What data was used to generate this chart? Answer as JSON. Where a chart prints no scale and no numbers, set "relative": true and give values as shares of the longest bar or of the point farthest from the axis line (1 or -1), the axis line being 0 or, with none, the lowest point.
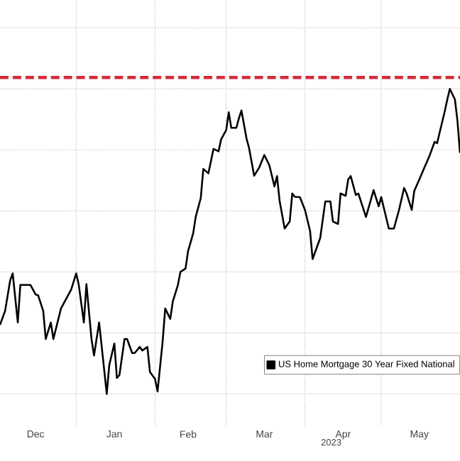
{
  "chart_data": {
    "type": "line",
    "relative": true,
    "xlabel": "2023",
    "x": [
      "2022-12-02",
      "2022-12-04",
      "2022-12-06",
      "2022-12-07",
      "2022-12-09",
      "2022-12-10",
      "2022-12-14",
      "2022-12-16",
      "2022-12-17",
      "2022-12-19",
      "2022-12-20",
      "2022-12-22",
      "2022-12-23",
      "2022-12-26",
      "2022-12-28",
      "2022-12-30",
      "2023-01-01",
      "2023-01-02",
      "2023-01-04",
      "2023-01-05",
      "2023-01-07",
      "2023-01-08",
      "2023-01-10",
      "2023-01-11",
      "2023-01-13",
      "2023-01-14",
      "2023-01-16",
      "2023-01-17",
      "2023-01-18",
      "2023-01-20",
      "2023-01-21",
      "2023-01-23",
      "2023-01-24",
      "2023-01-26",
      "2023-01-27",
      "2023-01-29",
      "2023-01-30",
      "2023-02-01",
      "2023-02-02",
      "2023-02-04",
      "2023-02-05",
      "2023-02-07",
      "2023-02-08",
      "2023-02-10",
      "2023-02-11",
      "2023-02-13",
      "2023-02-14",
      "2023-02-16",
      "2023-02-17",
      "2023-02-19",
      "2023-02-20",
      "2023-02-22",
      "2023-02-24",
      "2023-02-26",
      "2023-02-27",
      "2023-03-01",
      "2023-03-02",
      "2023-03-03",
      "2023-03-05",
      "2023-03-06",
      "2023-03-07",
      "2023-03-09",
      "2023-03-10",
      "2023-03-12",
      "2023-03-14",
      "2023-03-16",
      "2023-03-18",
      "2023-03-20",
      "2023-03-21",
      "2023-03-22",
      "2023-03-24",
      "2023-03-26",
      "2023-03-27",
      "2023-03-28",
      "2023-03-30",
      "2023-04-01",
      "2023-04-03",
      "2023-04-04",
      "2023-04-07",
      "2023-04-09",
      "2023-04-11",
      "2023-04-12",
      "2023-04-14",
      "2023-04-15",
      "2023-04-17",
      "2023-04-18",
      "2023-04-19",
      "2023-04-21",
      "2023-04-22",
      "2023-04-25",
      "2023-04-28",
      "2023-04-30",
      "2023-05-01",
      "2023-05-04",
      "2023-05-06",
      "2023-05-08",
      "2023-05-10",
      "2023-05-11",
      "2023-05-13",
      "2023-05-14",
      "2023-05-16",
      "2023-05-18",
      "2023-05-20",
      "2023-05-22",
      "2023-05-23",
      "2023-05-24",
      "2023-05-26",
      "2023-05-27",
      "2023-05-28",
      "2023-05-30",
      "2023-05-31",
      "2023-06-01"
    ],
    "series": [
      {
        "name": "US Home Mortgage 30 Year Fixed National",
        "color": "#000000",
        "values": [
          0.226,
          0.272,
          0.372,
          0.395,
          0.234,
          0.357,
          0.357,
          0.326,
          0.323,
          0.272,
          0.18,
          0.234,
          0.18,
          0.28,
          0.311,
          0.342,
          0.395,
          0.357,
          0.234,
          0.36,
          0.18,
          0.126,
          0.234,
          0.157,
          0.0,
          0.095,
          0.165,
          0.052,
          0.062,
          0.18,
          0.18,
          0.134,
          0.134,
          0.154,
          0.142,
          0.154,
          0.072,
          0.049,
          0.008,
          0.172,
          0.28,
          0.246,
          0.303,
          0.357,
          0.4,
          0.411,
          0.468,
          0.526,
          0.58,
          0.642,
          0.737,
          0.723,
          0.803,
          0.795,
          0.834,
          0.865,
          0.923,
          0.872,
          0.872,
          0.903,
          0.929,
          0.837,
          0.806,
          0.715,
          0.742,
          0.783,
          0.749,
          0.68,
          0.714,
          0.634,
          0.542,
          0.565,
          0.657,
          0.646,
          0.645,
          0.603,
          0.534,
          0.442,
          0.511,
          0.631,
          0.631,
          0.565,
          0.557,
          0.657,
          0.649,
          0.703,
          0.714,
          0.652,
          0.657,
          0.58,
          0.668,
          0.615,
          0.645,
          0.542,
          0.542,
          0.603,
          0.675,
          0.657,
          0.603,
          0.665,
          0.703,
          0.742,
          0.78,
          0.826,
          0.822,
          0.857,
          0.926,
          0.965,
          1.0,
          0.965,
          0.895,
          0.79
        ]
      }
    ],
    "xlim": [
      "2022-12-02",
      "2023-06-01"
    ],
    "xticks": [
      {
        "value": "2022-12-16",
        "label": "Dec"
      },
      {
        "value": "2023-01-01",
        "label": null
      },
      {
        "value": "2023-01-16",
        "label": "Jan"
      },
      {
        "value": "2023-02-01",
        "label": null
      },
      {
        "value": "2023-02-14",
        "label": "Feb"
      },
      {
        "value": "2023-03-01",
        "label": null
      },
      {
        "value": "2023-03-16",
        "label": "Mar"
      },
      {
        "value": "2023-04-01",
        "label": null
      },
      {
        "value": "2023-04-16",
        "label": "Apr"
      },
      {
        "value": "2023-05-01",
        "label": null
      },
      {
        "value": "2023-05-16",
        "label": "May"
      }
    ],
    "ref_lines": [
      {
        "axis": "y",
        "value": 1.037,
        "color": "#d42a3a",
        "line_style": "dashed"
      }
    ],
    "grid": true,
    "legend": "bottom right",
    "marker": "none",
    "line_style": "solid"
  }
}
